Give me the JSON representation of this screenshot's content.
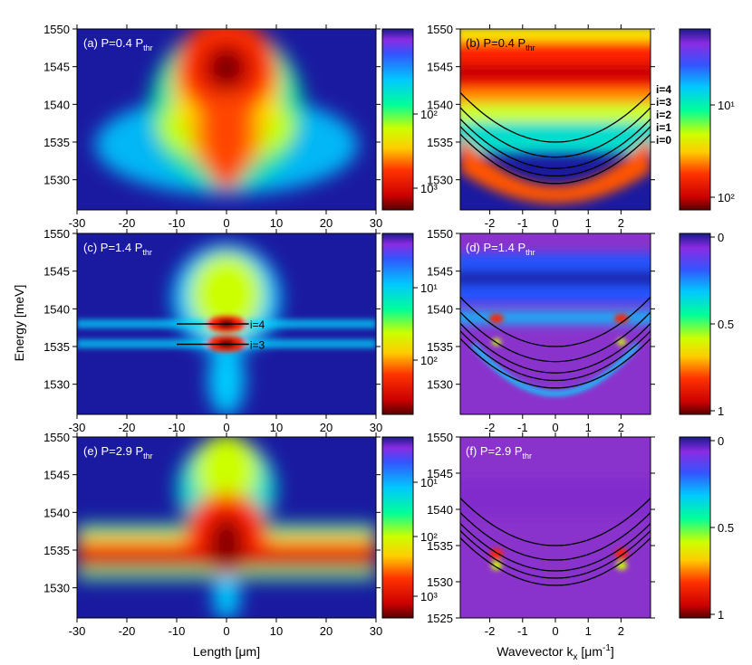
{
  "figure": {
    "ylabel": "Energy [meV]",
    "xlabel_left": "Length [μm]",
    "xlabel_right_main": "Wavevector k",
    "xlabel_right_sub": "x",
    "xlabel_right_unit": " [μm",
    "xlabel_right_sup": "-1",
    "xlabel_right_end": "]"
  },
  "chart_data": [
    {
      "id": "a",
      "type": "heatmap",
      "title_main": "(a) P=0.4 P",
      "title_sub": "thr",
      "x_ticks": [
        -30,
        -20,
        -10,
        0,
        10,
        20,
        30
      ],
      "xlim": [
        -30,
        30
      ],
      "y_ticks": [
        1530,
        1535,
        1540,
        1545,
        1550
      ],
      "ylim": [
        1526,
        1550
      ],
      "x_tick_labels": true,
      "colorbar": {
        "labels": [
          "10²",
          "10³"
        ],
        "positions": [
          0.47,
          0.88
        ],
        "reversed_log": true
      },
      "colors": {
        "bg": "#1a1aa0",
        "peak": "#5a0000"
      }
    },
    {
      "id": "b",
      "type": "heatmap",
      "title_main": "(b) P=0.4 P",
      "title_sub": "thr",
      "x_ticks": [
        -2,
        -1,
        0,
        1,
        2
      ],
      "xlim": [
        -2.9,
        2.9
      ],
      "y_ticks": [
        1530,
        1535,
        1540,
        1545,
        1550
      ],
      "ylim": [
        1526,
        1550
      ],
      "x_tick_labels": true,
      "curves": [
        1535,
        1533,
        1531.5,
        1530.5,
        1529.5
      ],
      "curve_labels": [
        "i=4",
        "i=3",
        "i=2",
        "i=1",
        "i=0"
      ],
      "colorbar": {
        "labels": [
          "10¹",
          "10²"
        ],
        "positions": [
          0.42,
          0.93
        ]
      }
    },
    {
      "id": "c",
      "type": "heatmap",
      "title_main": "(c) P=1.4 P",
      "title_sub": "thr",
      "x_ticks": [
        -30,
        -20,
        -10,
        0,
        10,
        20,
        30
      ],
      "xlim": [
        -30,
        30
      ],
      "y_ticks": [
        1530,
        1535,
        1540,
        1545,
        1550
      ],
      "ylim": [
        1526,
        1550
      ],
      "x_tick_labels": true,
      "markers": [
        {
          "label": "i=4",
          "y": 1538
        },
        {
          "label": "i=3",
          "y": 1535.3
        }
      ],
      "colorbar": {
        "labels": [
          "10¹",
          "10²"
        ],
        "positions": [
          0.3,
          0.7
        ]
      }
    },
    {
      "id": "d",
      "type": "heatmap",
      "title_main": "(d) P=1.4 P",
      "title_sub": "thr",
      "x_ticks": [
        -2,
        -1,
        0,
        1,
        2
      ],
      "xlim": [
        -2.9,
        2.9
      ],
      "y_ticks": [
        1530,
        1535,
        1540,
        1545,
        1550
      ],
      "ylim": [
        1526,
        1550
      ],
      "x_tick_labels": true,
      "curves": [
        1535,
        1533,
        1531.5,
        1530.5,
        1529.5
      ],
      "colorbar": {
        "labels": [
          "0",
          "0.5",
          "1"
        ],
        "positions": [
          0.02,
          0.5,
          0.98
        ]
      }
    },
    {
      "id": "e",
      "type": "heatmap",
      "title_main": "(e) P=2.9 P",
      "title_sub": "thr",
      "x_ticks": [
        -30,
        -20,
        -10,
        0,
        10,
        20,
        30
      ],
      "xlim": [
        -30,
        30
      ],
      "y_ticks": [
        1530,
        1535,
        1540,
        1545,
        1550
      ],
      "ylim": [
        1526,
        1550
      ],
      "x_tick_labels": true,
      "colorbar": {
        "labels": [
          "10¹",
          "10²",
          "10³"
        ],
        "positions": [
          0.25,
          0.55,
          0.88
        ]
      }
    },
    {
      "id": "f",
      "type": "heatmap",
      "title_main": "(f) P=2.9 P",
      "title_sub": "thr",
      "x_ticks": [
        -2,
        -1,
        0,
        1,
        2
      ],
      "xlim": [
        -2.9,
        2.9
      ],
      "y_ticks": [
        1525,
        1530,
        1535,
        1540,
        1545,
        1550
      ],
      "ylim": [
        1525,
        1550
      ],
      "x_tick_labels": true,
      "curves": [
        1535,
        1533,
        1531.5,
        1530.5,
        1529.5
      ],
      "colorbar": {
        "labels": [
          "0",
          "0.5",
          "1"
        ],
        "positions": [
          0.02,
          0.5,
          0.98
        ]
      }
    }
  ]
}
